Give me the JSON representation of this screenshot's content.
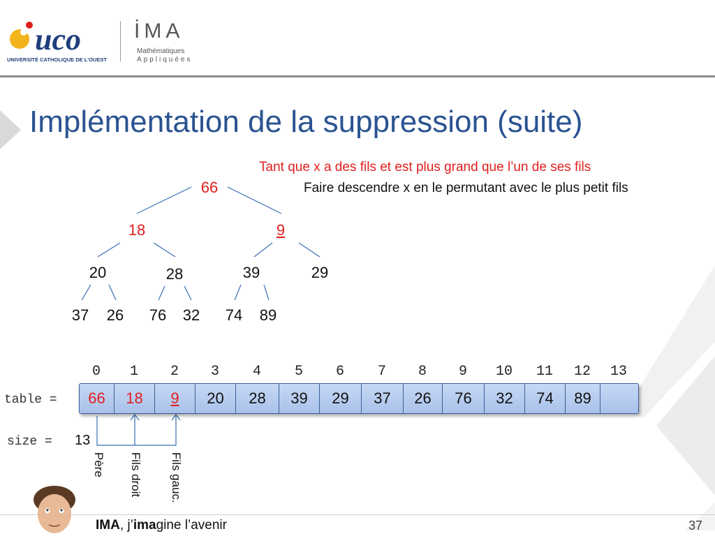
{
  "logo": {
    "uco_text": "uco",
    "uco_sub": "UNIVERSITÉ CATHOLIQUE DE L'OUEST",
    "ima_text": "İMA",
    "ima_sub1": "Mathématiques",
    "ima_sub2": "Appliquées"
  },
  "title": "Implémentation de la suppression (suite)",
  "notes": {
    "condition": "Tant que x a des fils et est plus grand que l’un de ses fils",
    "action": "Faire descendre x en le permutant avec le plus petit fils"
  },
  "tree": {
    "nodes": [
      "66",
      "18",
      "9",
      "20",
      "28",
      "39",
      "29",
      "37",
      "26",
      "76",
      "32",
      "74",
      "89"
    ]
  },
  "array": {
    "label": "table =",
    "indices": [
      "0",
      "1",
      "2",
      "3",
      "4",
      "5",
      "6",
      "7",
      "8",
      "9",
      "10",
      "11",
      "12",
      "13"
    ],
    "values": [
      "66",
      "18",
      "9",
      "20",
      "28",
      "39",
      "29",
      "37",
      "26",
      "76",
      "32",
      "74",
      "89",
      ""
    ],
    "size_label": "size =",
    "size_value": "13"
  },
  "pointers": {
    "parent": "Père",
    "right_child": "Fils droit",
    "left_child": "Fils gauc."
  },
  "footer": {
    "brand": "IMA",
    "sep": ", j’",
    "bold": "ima",
    "rest": "gine l’avenir",
    "page": "37"
  },
  "colors": {
    "title": "#2a5391",
    "highlight": "#e0201f",
    "array_fill": "#b7cdf0"
  }
}
